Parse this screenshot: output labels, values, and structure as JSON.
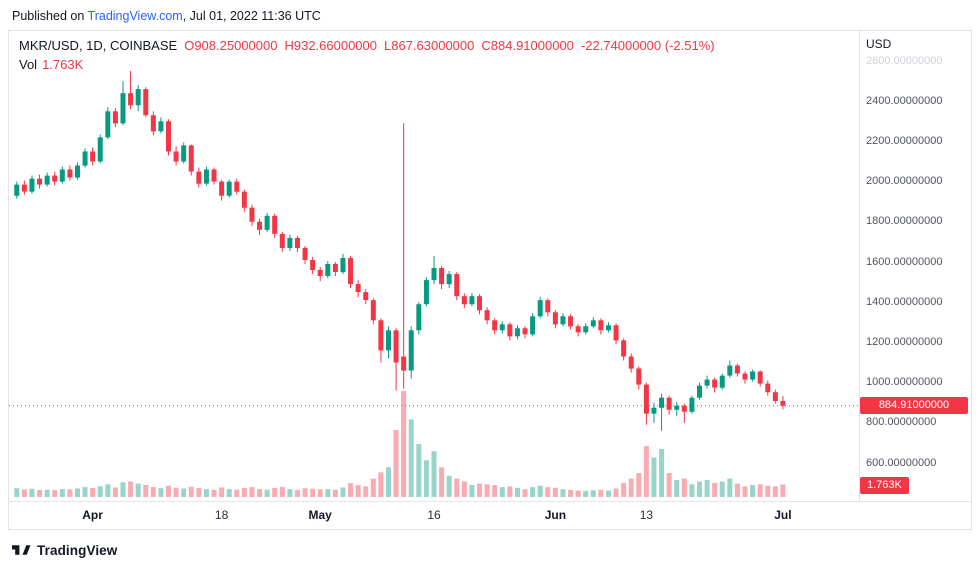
{
  "published_bar": {
    "prefix": "Published on ",
    "link": "TradingView.com",
    "suffix": ", Jul 01, 2022 11:36 UTC"
  },
  "header": {
    "symbol": "MKR/USD, 1D, COINBASE",
    "ohlc": [
      {
        "label": "O",
        "value": "908.25000000"
      },
      {
        "label": "H",
        "value": "932.66000000"
      },
      {
        "label": "L",
        "value": "867.63000000"
      },
      {
        "label": "C",
        "value": "884.91000000"
      }
    ],
    "change": "-22.74000000 (-2.51%)",
    "vol_label": "Vol",
    "vol_value": "1.763K"
  },
  "axis": {
    "currency": "USD",
    "price_labels": [
      {
        "text": "2600.00000000",
        "faded": true
      },
      {
        "text": "2400.00000000"
      },
      {
        "text": "2200.00000000"
      },
      {
        "text": "2000.00000000"
      },
      {
        "text": "1800.00000000"
      },
      {
        "text": "1600.00000000"
      },
      {
        "text": "1400.00000000"
      },
      {
        "text": "1200.00000000"
      },
      {
        "text": "1000.00000000"
      },
      {
        "text": "800.00000000"
      },
      {
        "text": "600.00000000"
      }
    ],
    "time_labels": [
      {
        "text": "Apr",
        "index": 10,
        "month": true
      },
      {
        "text": "18",
        "index": 27,
        "month": false
      },
      {
        "text": "May",
        "index": 40,
        "month": true
      },
      {
        "text": "16",
        "index": 55,
        "month": false
      },
      {
        "text": "Jun",
        "index": 71,
        "month": true
      },
      {
        "text": "13",
        "index": 83,
        "month": false
      },
      {
        "text": "Jul",
        "index": 101,
        "month": true
      }
    ],
    "last_price_badge": "884.91000000",
    "volume_badge": "1.763K"
  },
  "colors": {
    "up": "#089981",
    "down": "#F23645",
    "link_blue": "#2962FF",
    "border": "#E0E3EB",
    "axis_text": "#50535E",
    "text_dark": "#131722",
    "badge_red": "#F23645"
  },
  "chart_data": {
    "type": "candlestick",
    "title": "MKR/USD, 1D, COINBASE",
    "legend": [
      "price candles",
      "volume"
    ],
    "price_axis": {
      "min": 600,
      "max": 2600,
      "step": 200,
      "unit": "USD"
    },
    "last_close": 884.91,
    "last_volume_label": "1.763K",
    "candle_format": [
      "date",
      "open",
      "high",
      "low",
      "close",
      "volume"
    ],
    "candles": [
      [
        "2022-03-22",
        1930,
        2000,
        1915,
        1985,
        1240
      ],
      [
        "2022-03-23",
        1985,
        2005,
        1935,
        1950,
        1080
      ],
      [
        "2022-03-24",
        1950,
        2030,
        1940,
        2015,
        1160
      ],
      [
        "2022-03-25",
        2015,
        2035,
        1965,
        1985,
        1000
      ],
      [
        "2022-03-26",
        1985,
        2045,
        1975,
        2030,
        1040
      ],
      [
        "2022-03-27",
        2030,
        2050,
        1980,
        2000,
        960
      ],
      [
        "2022-03-28",
        2000,
        2075,
        1990,
        2060,
        1120
      ],
      [
        "2022-03-29",
        2060,
        2080,
        2005,
        2020,
        1080
      ],
      [
        "2022-03-30",
        2020,
        2095,
        2010,
        2080,
        1200
      ],
      [
        "2022-03-31",
        2080,
        2165,
        2070,
        2150,
        1400
      ],
      [
        "2022-04-01",
        2150,
        2170,
        2080,
        2100,
        1280
      ],
      [
        "2022-04-02",
        2100,
        2235,
        2090,
        2220,
        1520
      ],
      [
        "2022-04-03",
        2220,
        2370,
        2210,
        2350,
        1800
      ],
      [
        "2022-04-04",
        2350,
        2365,
        2270,
        2290,
        1360
      ],
      [
        "2022-04-05",
        2290,
        2500,
        2280,
        2440,
        2100
      ],
      [
        "2022-04-06",
        2440,
        2550,
        2360,
        2380,
        2200
      ],
      [
        "2022-04-07",
        2380,
        2480,
        2350,
        2460,
        1900
      ],
      [
        "2022-04-08",
        2460,
        2470,
        2320,
        2330,
        1700
      ],
      [
        "2022-04-09",
        2330,
        2350,
        2230,
        2250,
        1400
      ],
      [
        "2022-04-10",
        2250,
        2320,
        2240,
        2300,
        1240
      ],
      [
        "2022-04-11",
        2300,
        2310,
        2130,
        2150,
        1600
      ],
      [
        "2022-04-12",
        2150,
        2175,
        2080,
        2100,
        1300
      ],
      [
        "2022-04-13",
        2100,
        2195,
        2090,
        2180,
        1200
      ],
      [
        "2022-04-14",
        2180,
        2185,
        2030,
        2050,
        1440
      ],
      [
        "2022-04-15",
        2050,
        2070,
        1970,
        1990,
        1280
      ],
      [
        "2022-04-16",
        1990,
        2075,
        1980,
        2060,
        1120
      ],
      [
        "2022-04-17",
        2060,
        2070,
        1985,
        2000,
        1000
      ],
      [
        "2022-04-18",
        2000,
        2010,
        1905,
        1930,
        1360
      ],
      [
        "2022-04-19",
        1930,
        2010,
        1920,
        2000,
        1120
      ],
      [
        "2022-04-20",
        2000,
        2015,
        1935,
        1950,
        1040
      ],
      [
        "2022-04-21",
        1950,
        1960,
        1850,
        1870,
        1280
      ],
      [
        "2022-04-22",
        1870,
        1885,
        1780,
        1800,
        1400
      ],
      [
        "2022-04-23",
        1800,
        1815,
        1735,
        1760,
        1120
      ],
      [
        "2022-04-24",
        1760,
        1845,
        1750,
        1830,
        1040
      ],
      [
        "2022-04-25",
        1830,
        1840,
        1720,
        1740,
        1280
      ],
      [
        "2022-04-26",
        1740,
        1750,
        1650,
        1670,
        1440
      ],
      [
        "2022-04-27",
        1670,
        1735,
        1655,
        1720,
        1120
      ],
      [
        "2022-04-28",
        1720,
        1730,
        1650,
        1670,
        1000
      ],
      [
        "2022-04-29",
        1670,
        1680,
        1590,
        1610,
        1240
      ],
      [
        "2022-04-30",
        1610,
        1625,
        1540,
        1560,
        1160
      ],
      [
        "2022-05-01",
        1560,
        1575,
        1505,
        1530,
        1080
      ],
      [
        "2022-05-02",
        1530,
        1605,
        1520,
        1590,
        1120
      ],
      [
        "2022-05-03",
        1590,
        1600,
        1530,
        1550,
        1040
      ],
      [
        "2022-05-04",
        1550,
        1640,
        1540,
        1620,
        1360
      ],
      [
        "2022-05-05",
        1620,
        1630,
        1470,
        1490,
        1960
      ],
      [
        "2022-05-06",
        1490,
        1510,
        1425,
        1450,
        1680
      ],
      [
        "2022-05-07",
        1450,
        1465,
        1390,
        1410,
        1520
      ],
      [
        "2022-05-08",
        1410,
        1420,
        1290,
        1310,
        2600
      ],
      [
        "2022-05-09",
        1310,
        1320,
        1100,
        1160,
        3500
      ],
      [
        "2022-05-10",
        1160,
        1280,
        1120,
        1260,
        4200
      ],
      [
        "2022-05-11",
        1260,
        1270,
        960,
        1100,
        9500
      ],
      [
        "2022-05-12",
        1130,
        2290,
        970,
        1060,
        15000
      ],
      [
        "2022-05-13",
        1060,
        1280,
        1020,
        1260,
        11000
      ],
      [
        "2022-05-14",
        1260,
        1400,
        1240,
        1390,
        7500
      ],
      [
        "2022-05-15",
        1390,
        1525,
        1380,
        1510,
        5200
      ],
      [
        "2022-05-16",
        1510,
        1630,
        1490,
        1570,
        6500
      ],
      [
        "2022-05-17",
        1570,
        1580,
        1465,
        1490,
        4200
      ],
      [
        "2022-05-18",
        1490,
        1555,
        1470,
        1540,
        3000
      ],
      [
        "2022-05-19",
        1540,
        1550,
        1410,
        1430,
        2600
      ],
      [
        "2022-05-20",
        1430,
        1445,
        1370,
        1390,
        2200
      ],
      [
        "2022-05-21",
        1390,
        1445,
        1380,
        1430,
        1700
      ],
      [
        "2022-05-22",
        1430,
        1440,
        1340,
        1360,
        1900
      ],
      [
        "2022-05-23",
        1360,
        1375,
        1290,
        1310,
        1800
      ],
      [
        "2022-05-24",
        1310,
        1320,
        1240,
        1260,
        1700
      ],
      [
        "2022-05-25",
        1260,
        1305,
        1245,
        1290,
        1400
      ],
      [
        "2022-05-26",
        1290,
        1300,
        1210,
        1230,
        1500
      ],
      [
        "2022-05-27",
        1230,
        1285,
        1215,
        1270,
        1300
      ],
      [
        "2022-05-28",
        1270,
        1280,
        1220,
        1240,
        1100
      ],
      [
        "2022-05-29",
        1240,
        1345,
        1230,
        1330,
        1400
      ],
      [
        "2022-05-30",
        1330,
        1425,
        1320,
        1410,
        1600
      ],
      [
        "2022-05-31",
        1410,
        1420,
        1330,
        1350,
        1400
      ],
      [
        "2022-06-01",
        1350,
        1360,
        1270,
        1290,
        1300
      ],
      [
        "2022-06-02",
        1290,
        1345,
        1280,
        1330,
        1100
      ],
      [
        "2022-06-03",
        1330,
        1340,
        1265,
        1280,
        1000
      ],
      [
        "2022-06-04",
        1280,
        1290,
        1230,
        1250,
        900
      ],
      [
        "2022-06-05",
        1250,
        1295,
        1240,
        1280,
        850
      ],
      [
        "2022-06-06",
        1280,
        1325,
        1270,
        1310,
        950
      ],
      [
        "2022-06-07",
        1310,
        1320,
        1240,
        1260,
        1000
      ],
      [
        "2022-06-08",
        1260,
        1300,
        1250,
        1285,
        900
      ],
      [
        "2022-06-09",
        1285,
        1295,
        1190,
        1210,
        1200
      ],
      [
        "2022-06-10",
        1210,
        1220,
        1110,
        1130,
        2000
      ],
      [
        "2022-06-11",
        1130,
        1145,
        1050,
        1070,
        2600
      ],
      [
        "2022-06-12",
        1070,
        1080,
        965,
        990,
        3400
      ],
      [
        "2022-06-13",
        990,
        1000,
        790,
        845,
        7200
      ],
      [
        "2022-06-14",
        845,
        900,
        800,
        875,
        5600
      ],
      [
        "2022-06-15",
        875,
        945,
        760,
        925,
        6800
      ],
      [
        "2022-06-16",
        925,
        935,
        840,
        865,
        3400
      ],
      [
        "2022-06-17",
        865,
        905,
        835,
        885,
        2400
      ],
      [
        "2022-06-18",
        885,
        895,
        800,
        855,
        2600
      ],
      [
        "2022-06-19",
        855,
        935,
        845,
        925,
        1800
      ],
      [
        "2022-06-20",
        925,
        1000,
        915,
        985,
        2200
      ],
      [
        "2022-06-21",
        985,
        1035,
        970,
        1015,
        2400
      ],
      [
        "2022-06-22",
        1015,
        1025,
        950,
        975,
        2000
      ],
      [
        "2022-06-23",
        975,
        1045,
        965,
        1035,
        2200
      ],
      [
        "2022-06-24",
        1035,
        1110,
        1025,
        1085,
        2600
      ],
      [
        "2022-06-25",
        1085,
        1095,
        1030,
        1045,
        1900
      ],
      [
        "2022-06-26",
        1045,
        1055,
        995,
        1015,
        1500
      ],
      [
        "2022-06-27",
        1015,
        1065,
        1005,
        1055,
        1700
      ],
      [
        "2022-06-28",
        1055,
        1060,
        980,
        995,
        1800
      ],
      [
        "2022-06-29",
        995,
        1010,
        935,
        952,
        1600
      ],
      [
        "2022-06-30",
        952,
        965,
        895,
        908.25,
        1500
      ],
      [
        "2022-07-01",
        908.25,
        932.66,
        867.63,
        884.91,
        1763
      ]
    ]
  },
  "footer": {
    "logo_text": "TradingView"
  }
}
